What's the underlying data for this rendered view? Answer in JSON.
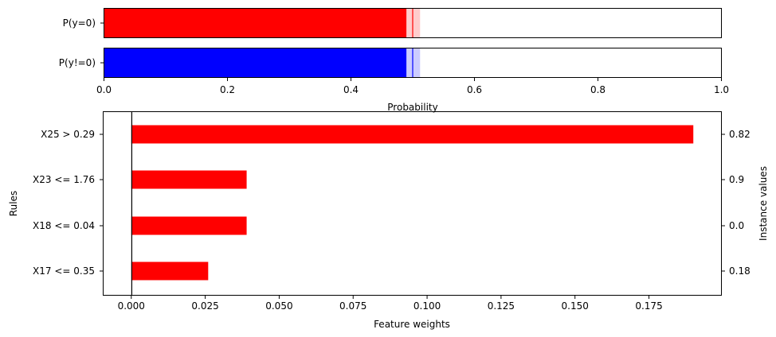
{
  "chart_data": [
    {
      "type": "bar",
      "orientation": "horizontal",
      "categories": [
        "P(y=0)",
        "P(y!=0)"
      ],
      "xlabel": "Probability",
      "xlim": [
        0,
        1
      ],
      "xticks": [
        "0.0",
        "0.2",
        "0.4",
        "0.6",
        "0.8",
        "1.0"
      ],
      "xtick_values": [
        0,
        0.2,
        0.4,
        0.6,
        0.8,
        1.0
      ],
      "series": [
        {
          "category": "P(y=0)",
          "value": 0.49,
          "interval": [
            0.49,
            0.512
          ],
          "marker": 0.5,
          "color": "#ff0000",
          "interval_color": "#ffcccc"
        },
        {
          "category": "P(y!=0)",
          "value": 0.49,
          "interval": [
            0.49,
            0.512
          ],
          "marker": 0.5,
          "color": "#0000ff",
          "interval_color": "#ccccff"
        }
      ]
    },
    {
      "type": "bar",
      "orientation": "horizontal",
      "xlabel": "Feature weights",
      "ylabel": "Rules",
      "ylabel_right": "Instance values",
      "xlim": [
        -0.0095,
        0.1995
      ],
      "xticks": [
        "0.000",
        "0.025",
        "0.050",
        "0.075",
        "0.100",
        "0.125",
        "0.150",
        "0.175"
      ],
      "xtick_values": [
        0,
        0.025,
        0.05,
        0.075,
        0.1,
        0.125,
        0.15,
        0.175
      ],
      "color": "#ff0000",
      "categories": [
        "X25 > 0.29",
        "X23 <= 1.76",
        "X18 <= 0.04",
        "X17 <= 0.35"
      ],
      "values": [
        0.19,
        0.039,
        0.039,
        0.026
      ],
      "instance_values": [
        "0.82",
        "0.9",
        "0.0",
        "0.18"
      ]
    }
  ]
}
